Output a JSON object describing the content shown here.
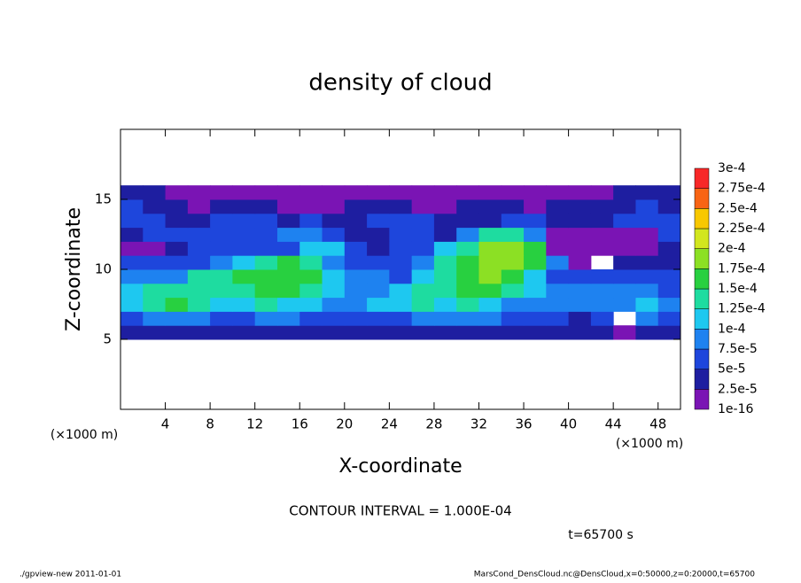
{
  "chart_data": {
    "type": "heatmap",
    "title": "density of cloud",
    "xlabel": "X-coordinate",
    "ylabel": "Z-coordinate",
    "xunit": "(×1000 m)",
    "yunit": "(×1000 m)",
    "contour_note": "CONTOUR INTERVAL = 1.000E-04",
    "time_note": "t=65700 s",
    "footer_left": "./gpview-new   2011-01-01",
    "footer_right": "MarsCond_DensCloud.nc@DensCloud,x=0:50000,z=0:20000,t=65700",
    "xlim": [
      0,
      50
    ],
    "ylim": [
      0,
      20
    ],
    "xticks": [
      4,
      8,
      12,
      16,
      20,
      24,
      28,
      32,
      36,
      40,
      44,
      48
    ],
    "yticks": [
      5,
      10,
      15
    ],
    "x": [
      1,
      3,
      5,
      7,
      9,
      11,
      13,
      15,
      17,
      19,
      21,
      23,
      25,
      27,
      29,
      31,
      33,
      35,
      37,
      39,
      41,
      43,
      45,
      47,
      49
    ],
    "y": [
      5.5,
      6.5,
      7.5,
      8.5,
      9.5,
      10.5,
      11.5,
      12.5,
      13.5,
      14.5,
      15.5
    ],
    "z": [
      [
        3e-05,
        3e-05,
        3e-05,
        3e-05,
        3e-05,
        3e-05,
        3e-05,
        3e-05,
        3e-05,
        3e-05,
        3e-05,
        3e-05,
        3e-05,
        3e-05,
        3e-05,
        3e-05,
        3e-05,
        3e-05,
        3e-05,
        3e-05,
        3e-05,
        3e-05,
        1e-05,
        3e-05,
        3e-05
      ],
      [
        6e-05,
        9e-05,
        9e-05,
        9e-05,
        6e-05,
        6e-05,
        9e-05,
        9e-05,
        6e-05,
        6e-05,
        6e-05,
        6e-05,
        6e-05,
        9e-05,
        9e-05,
        9e-05,
        9e-05,
        6e-05,
        6e-05,
        6e-05,
        3e-05,
        6e-05,
        null,
        9e-05,
        6e-05
      ],
      [
        0.00011,
        0.00014,
        0.00016,
        0.00014,
        0.00011,
        0.00011,
        0.00014,
        0.00011,
        0.00011,
        9e-05,
        9e-05,
        0.00011,
        0.00011,
        0.00014,
        0.00011,
        0.00014,
        0.00011,
        9e-05,
        9e-05,
        9e-05,
        9e-05,
        9e-05,
        9e-05,
        0.00011,
        9e-05
      ],
      [
        0.00011,
        0.00014,
        0.00014,
        0.00014,
        0.00014,
        0.00014,
        0.00016,
        0.00016,
        0.00014,
        0.00011,
        9e-05,
        9e-05,
        0.00011,
        0.00014,
        0.00014,
        0.00016,
        0.00016,
        0.00014,
        0.00011,
        9e-05,
        9e-05,
        9e-05,
        9e-05,
        9e-05,
        6e-05
      ],
      [
        9e-05,
        9e-05,
        9e-05,
        0.00014,
        0.00014,
        0.00016,
        0.00016,
        0.00016,
        0.00016,
        0.00011,
        9e-05,
        9e-05,
        6e-05,
        0.00011,
        0.00014,
        0.00016,
        0.00019,
        0.00016,
        0.00011,
        6e-05,
        6e-05,
        6e-05,
        6e-05,
        6e-05,
        6e-05
      ],
      [
        6e-05,
        6e-05,
        6e-05,
        6e-05,
        9e-05,
        0.00011,
        0.00014,
        0.00016,
        0.00014,
        9e-05,
        6e-05,
        6e-05,
        6e-05,
        9e-05,
        0.00014,
        0.00016,
        0.00019,
        0.00019,
        0.00016,
        9e-05,
        1e-05,
        null,
        3e-05,
        3e-05,
        3e-05
      ],
      [
        1e-05,
        1e-05,
        3e-05,
        6e-05,
        6e-05,
        6e-05,
        6e-05,
        6e-05,
        0.00011,
        0.00011,
        6e-05,
        3e-05,
        6e-05,
        6e-05,
        0.00011,
        0.00014,
        0.00019,
        0.00019,
        0.00016,
        1e-05,
        1e-05,
        1e-05,
        1e-05,
        1e-05,
        3e-05
      ],
      [
        3e-05,
        6e-05,
        6e-05,
        6e-05,
        6e-05,
        6e-05,
        6e-05,
        9e-05,
        9e-05,
        6e-05,
        3e-05,
        3e-05,
        6e-05,
        6e-05,
        3e-05,
        9e-05,
        0.00014,
        0.00014,
        9e-05,
        1e-05,
        1e-05,
        1e-05,
        1e-05,
        1e-05,
        6e-05
      ],
      [
        6e-05,
        6e-05,
        3e-05,
        3e-05,
        6e-05,
        6e-05,
        6e-05,
        3e-05,
        6e-05,
        3e-05,
        3e-05,
        6e-05,
        6e-05,
        6e-05,
        3e-05,
        3e-05,
        3e-05,
        6e-05,
        6e-05,
        3e-05,
        3e-05,
        3e-05,
        6e-05,
        6e-05,
        6e-05
      ],
      [
        6e-05,
        3e-05,
        3e-05,
        1e-05,
        3e-05,
        3e-05,
        3e-05,
        1e-05,
        1e-05,
        1e-05,
        3e-05,
        3e-05,
        3e-05,
        1e-05,
        1e-05,
        3e-05,
        3e-05,
        3e-05,
        1e-05,
        3e-05,
        3e-05,
        3e-05,
        3e-05,
        6e-05,
        3e-05
      ],
      [
        3e-05,
        3e-05,
        1e-05,
        1e-05,
        1e-05,
        1e-05,
        1e-05,
        1e-05,
        1e-05,
        1e-05,
        1e-05,
        1e-05,
        1e-05,
        1e-05,
        1e-05,
        1e-05,
        1e-05,
        1e-05,
        1e-05,
        1e-05,
        1e-05,
        1e-05,
        3e-05,
        3e-05,
        3e-05
      ]
    ],
    "levels": [
      {
        "value": 1e-16,
        "label": "1e-16"
      },
      {
        "value": 2.5e-05,
        "label": "2.5e-5"
      },
      {
        "value": 5e-05,
        "label": "5e-5"
      },
      {
        "value": 7.5e-05,
        "label": "7.5e-5"
      },
      {
        "value": 0.0001,
        "label": "1e-4"
      },
      {
        "value": 0.000125,
        "label": "1.25e-4"
      },
      {
        "value": 0.00015,
        "label": "1.5e-4"
      },
      {
        "value": 0.000175,
        "label": "1.75e-4"
      },
      {
        "value": 0.0002,
        "label": "2e-4"
      },
      {
        "value": 0.000225,
        "label": "2.25e-4"
      },
      {
        "value": 0.00025,
        "label": "2.5e-4"
      },
      {
        "value": 0.000275,
        "label": "2.75e-4"
      },
      {
        "value": 0.0003,
        "label": "3e-4"
      }
    ],
    "colors": [
      "#7a14b4",
      "#1e1ea0",
      "#1e46dc",
      "#1e82f0",
      "#1ec8f0",
      "#1edca0",
      "#28d040",
      "#8ce024",
      "#d2e61e",
      "#f8c800",
      "#f86414",
      "#f82828"
    ]
  }
}
